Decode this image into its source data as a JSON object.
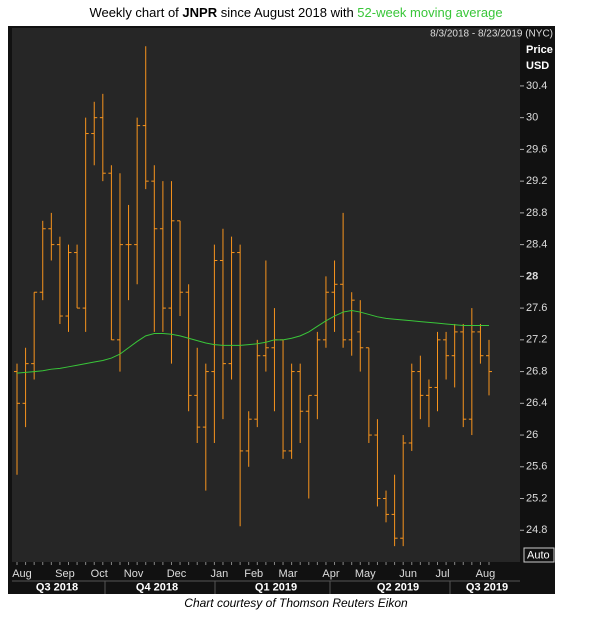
{
  "chart_data": {
    "type": "ohlc",
    "title_parts": [
      "Weekly chart of ",
      "JNPR",
      " since August 2018 with "
    ],
    "date_range": "8/3/2018 - 8/23/2019 (NYC)",
    "y_axis_label": "Price",
    "y_axis_unit": "USD",
    "categories": [
      "Aug",
      null,
      null,
      null,
      null,
      "Sep",
      null,
      null,
      null,
      "Oct",
      null,
      null,
      null,
      "Nov",
      null,
      null,
      null,
      null,
      "Dec",
      null,
      null,
      null,
      null,
      "Jan",
      null,
      null,
      null,
      "Feb",
      null,
      null,
      null,
      "Mar",
      null,
      null,
      null,
      null,
      "Apr",
      null,
      null,
      null,
      "May",
      null,
      null,
      null,
      null,
      "Jun",
      null,
      null,
      null,
      "Jul",
      null,
      null,
      null,
      null,
      "Aug",
      null
    ],
    "quarter_labels": [
      "Q3 2018",
      "Q4 2018",
      "Q1 2019",
      "Q2 2019",
      "Q3 2019"
    ],
    "series": [
      {
        "name": "JNPR",
        "type": "ohlc",
        "color": "#f7941d",
        "open": [
          26.8,
          26.4,
          26.9,
          27.8,
          28.6,
          28.4,
          27.5,
          28.3,
          27.6,
          29.8,
          30.0,
          29.3,
          27.2,
          28.4,
          28.4,
          29.9,
          29.2,
          28.6,
          27.6,
          28.7,
          27.8,
          26.5,
          26.1,
          26.8,
          28.2,
          26.9,
          28.3,
          25.8,
          26.2,
          27.0,
          27.1,
          27.2,
          25.8,
          26.8,
          26.3,
          26.5,
          27.2,
          27.8,
          27.9,
          27.2,
          27.3,
          27.1,
          26.0,
          25.2,
          25.0,
          24.7,
          25.9,
          26.8,
          26.5,
          26.6,
          27.2,
          27.0,
          27.3,
          26.2,
          27.3,
          27.0
        ],
        "high": [
          26.9,
          27.1,
          27.8,
          28.7,
          28.8,
          28.5,
          28.4,
          28.4,
          30.0,
          30.2,
          30.3,
          29.4,
          29.3,
          28.9,
          30.0,
          30.9,
          29.4,
          29.2,
          29.2,
          28.7,
          27.9,
          27.1,
          26.9,
          28.4,
          28.6,
          28.5,
          28.4,
          26.3,
          27.2,
          28.2,
          27.6,
          27.2,
          26.9,
          26.9,
          26.5,
          27.3,
          28.0,
          28.2,
          28.8,
          27.8,
          27.7,
          27.1,
          26.2,
          25.3,
          25.5,
          26.0,
          26.9,
          27.0,
          26.7,
          27.3,
          27.3,
          27.4,
          27.4,
          27.6,
          27.4,
          27.2
        ],
        "low": [
          25.5,
          26.1,
          26.7,
          27.7,
          28.2,
          27.4,
          27.3,
          27.6,
          27.3,
          29.4,
          29.2,
          27.2,
          26.8,
          27.7,
          27.9,
          29.1,
          27.3,
          27.3,
          26.9,
          27.5,
          26.3,
          25.9,
          25.3,
          25.9,
          26.2,
          26.7,
          24.85,
          25.6,
          26.1,
          26.8,
          26.3,
          25.7,
          25.7,
          25.9,
          25.2,
          26.2,
          27.1,
          27.3,
          27.1,
          27.0,
          26.8,
          25.9,
          25.1,
          24.9,
          24.6,
          24.6,
          25.8,
          26.2,
          26.1,
          26.3,
          26.7,
          26.6,
          26.1,
          26.0,
          26.9,
          26.5
        ],
        "close": [
          26.4,
          26.9,
          27.8,
          28.6,
          28.4,
          27.5,
          28.3,
          27.6,
          29.8,
          30.0,
          29.3,
          27.2,
          28.4,
          28.4,
          29.9,
          29.2,
          28.6,
          27.6,
          28.7,
          27.8,
          26.5,
          26.1,
          26.8,
          28.2,
          26.9,
          28.3,
          25.8,
          26.2,
          27.0,
          27.1,
          27.2,
          25.8,
          26.8,
          26.3,
          26.5,
          27.2,
          27.8,
          27.9,
          27.2,
          27.7,
          27.1,
          26.0,
          25.2,
          25.0,
          24.7,
          25.9,
          26.8,
          26.5,
          26.6,
          27.2,
          27.0,
          27.3,
          26.2,
          27.3,
          27.0,
          26.8
        ]
      },
      {
        "name": "52-week moving average",
        "type": "line",
        "color": "#39c639",
        "values": [
          26.78,
          26.79,
          26.8,
          26.81,
          26.83,
          26.84,
          26.86,
          26.88,
          26.9,
          26.92,
          26.94,
          26.97,
          27.02,
          27.1,
          27.18,
          27.25,
          27.28,
          27.28,
          27.27,
          27.25,
          27.22,
          27.19,
          27.16,
          27.14,
          27.13,
          27.13,
          27.13,
          27.14,
          27.15,
          27.17,
          27.2,
          27.2,
          27.22,
          27.25,
          27.3,
          27.37,
          27.44,
          27.5,
          27.55,
          27.57,
          27.55,
          27.52,
          27.49,
          27.47,
          27.46,
          27.45,
          27.44,
          27.43,
          27.42,
          27.41,
          27.4,
          27.39,
          27.38,
          27.38,
          27.38,
          27.38
        ]
      }
    ],
    "ylim": [
      24.4,
      31.13
    ],
    "yticks": [
      24.8,
      25.2,
      25.6,
      26,
      26.4,
      26.8,
      27.2,
      27.6,
      28,
      28.4,
      28.8,
      29.2,
      29.6,
      30,
      30.4
    ],
    "bold_ytick": 28,
    "grid": false
  },
  "controls": {
    "auto": "Auto"
  },
  "footer": "Chart courtesy of Thomson Reuters Eikon"
}
